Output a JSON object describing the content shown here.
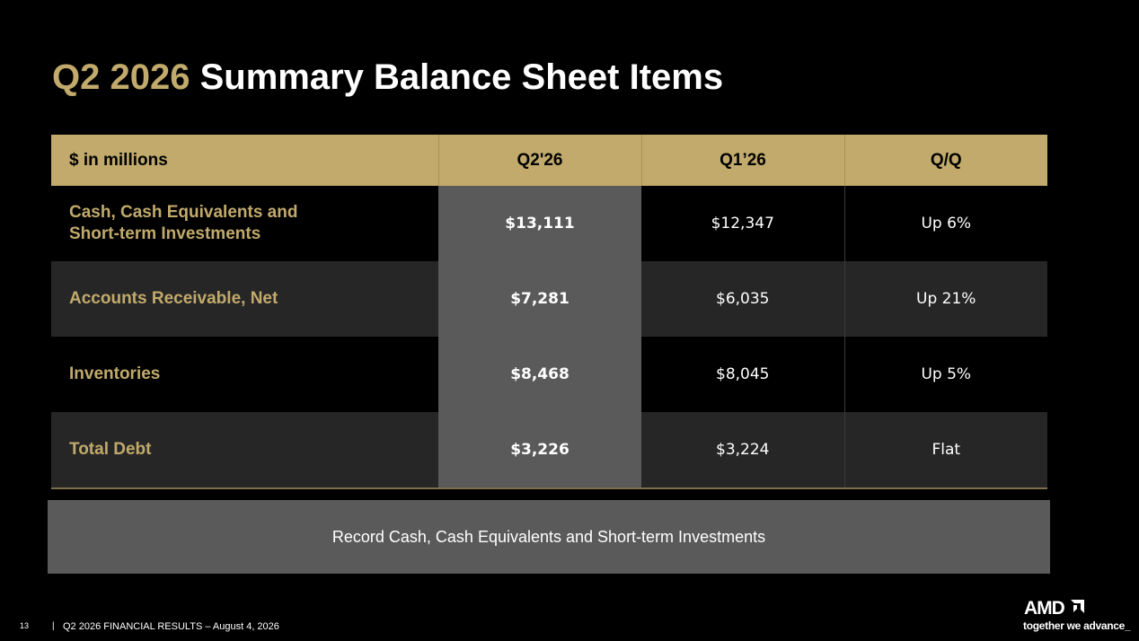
{
  "title": {
    "highlight": "Q2 2026",
    "rest": "Summary Balance Sheet Items"
  },
  "table": {
    "headers": [
      "$ in millions",
      "Q2'26",
      "Q1’26",
      "Q/Q"
    ],
    "rows": [
      {
        "label_line1": "Cash, Cash Equivalents and",
        "label_line2": "Short-term Investments",
        "q2": "$13,111",
        "q1": "$12,347",
        "qq": "Up 6%"
      },
      {
        "label": "Accounts Receivable, Net",
        "q2": "$7,281",
        "q1": "$6,035",
        "qq": "Up 21%"
      },
      {
        "label": "Inventories",
        "q2": "$8,468",
        "q1": "$8,045",
        "qq": "Up 5%"
      },
      {
        "label": "Total Debt",
        "q2": "$3,226",
        "q1": "$3,224",
        "qq": "Flat"
      }
    ]
  },
  "callout": "Record Cash, Cash Equivalents and Short-term Investments",
  "footer": {
    "page": "13",
    "separator": "|",
    "text": "Q2 2026 FINANCIAL RESULTS – August 4, 2026"
  },
  "logo": {
    "wordmark": "AMD",
    "tagline": "together we advance_"
  },
  "colors": {
    "accent": "#c1aa6b",
    "background": "#000000",
    "highlight_column": "#5a5a5a",
    "row_alt": "#262626"
  }
}
